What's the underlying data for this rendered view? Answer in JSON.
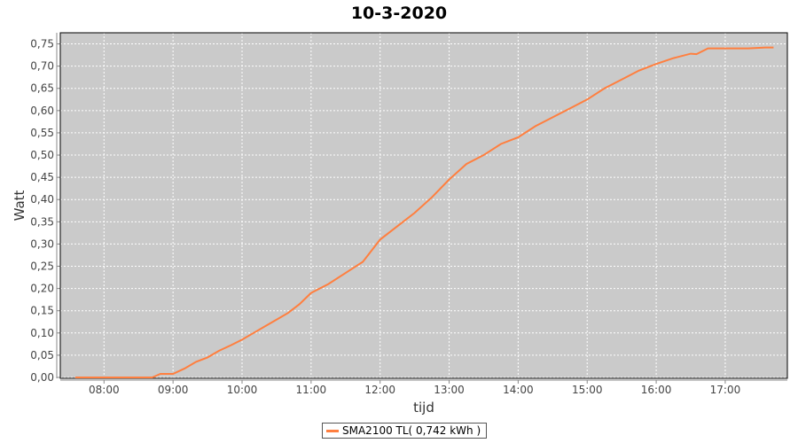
{
  "chart_data": {
    "type": "line",
    "title": "10-3-2020",
    "xlabel": "tijd",
    "ylabel": "Watt",
    "xlim": [
      "07:22",
      "17:54"
    ],
    "ylim": [
      0,
      0.775
    ],
    "grid": true,
    "legend_placement": "bottom",
    "x_ticks": [
      "08:00",
      "09:00",
      "10:00",
      "11:00",
      "12:00",
      "13:00",
      "14:00",
      "15:00",
      "16:00",
      "17:00"
    ],
    "y_ticks": [
      "0,00",
      "0,05",
      "0,10",
      "0,15",
      "0,20",
      "0,25",
      "0,30",
      "0,35",
      "0,40",
      "0,45",
      "0,50",
      "0,55",
      "0,60",
      "0,65",
      "0,70",
      "0,75"
    ],
    "colors": {
      "plot_background": "#cacaca",
      "series": "#ff7f3f",
      "grid": "#ffffff"
    },
    "series": [
      {
        "name": "SMA2100 TL( 0,742 kWh )",
        "x": [
          "07:35",
          "08:42",
          "08:49",
          "09:00",
          "09:10",
          "09:20",
          "09:30",
          "09:40",
          "09:50",
          "10:00",
          "10:10",
          "10:20",
          "10:30",
          "10:40",
          "10:50",
          "11:00",
          "11:15",
          "11:30",
          "11:45",
          "12:00",
          "12:15",
          "12:30",
          "12:45",
          "13:00",
          "13:15",
          "13:30",
          "13:45",
          "14:00",
          "14:15",
          "14:30",
          "14:45",
          "15:00",
          "15:15",
          "15:30",
          "15:45",
          "16:00",
          "16:15",
          "16:30",
          "16:35",
          "16:45",
          "17:00",
          "17:20",
          "17:35",
          "17:42"
        ],
        "y": [
          0,
          0,
          0.008,
          0.008,
          0.02,
          0.035,
          0.045,
          0.06,
          0.072,
          0.085,
          0.1,
          0.115,
          0.13,
          0.145,
          0.165,
          0.19,
          0.21,
          0.235,
          0.26,
          0.31,
          0.34,
          0.37,
          0.405,
          0.445,
          0.48,
          0.5,
          0.525,
          0.54,
          0.565,
          0.585,
          0.605,
          0.625,
          0.65,
          0.67,
          0.69,
          0.705,
          0.718,
          0.728,
          0.727,
          0.74,
          0.74,
          0.74,
          0.742,
          0.742
        ]
      }
    ]
  }
}
